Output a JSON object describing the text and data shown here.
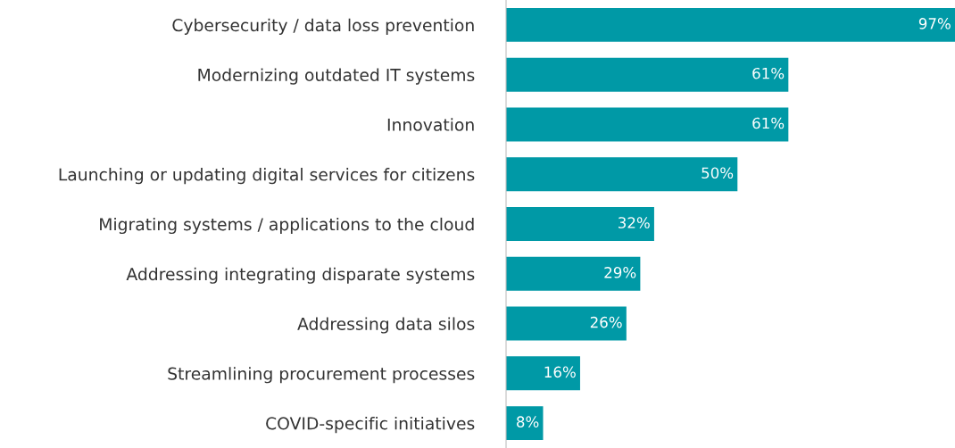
{
  "chart_data": {
    "type": "bar",
    "orientation": "horizontal",
    "categories": [
      "Cybersecurity / data loss prevention",
      "Modernizing outdated IT systems",
      "Innovation",
      "Launching or updating digital services for citizens",
      "Migrating systems / applications to the cloud",
      "Addressing integrating disparate systems",
      "Addressing data silos",
      "Streamlining procurement processes",
      "COVID-specific initiatives"
    ],
    "values": [
      97,
      61,
      61,
      50,
      32,
      29,
      26,
      16,
      8
    ],
    "value_labels": [
      "97%",
      "61%",
      "61%",
      "50%",
      "32%",
      "29%",
      "26%",
      "16%",
      "8%"
    ],
    "color": "#0099a6",
    "grid": false,
    "legend": false,
    "tick_labels": "y"
  }
}
